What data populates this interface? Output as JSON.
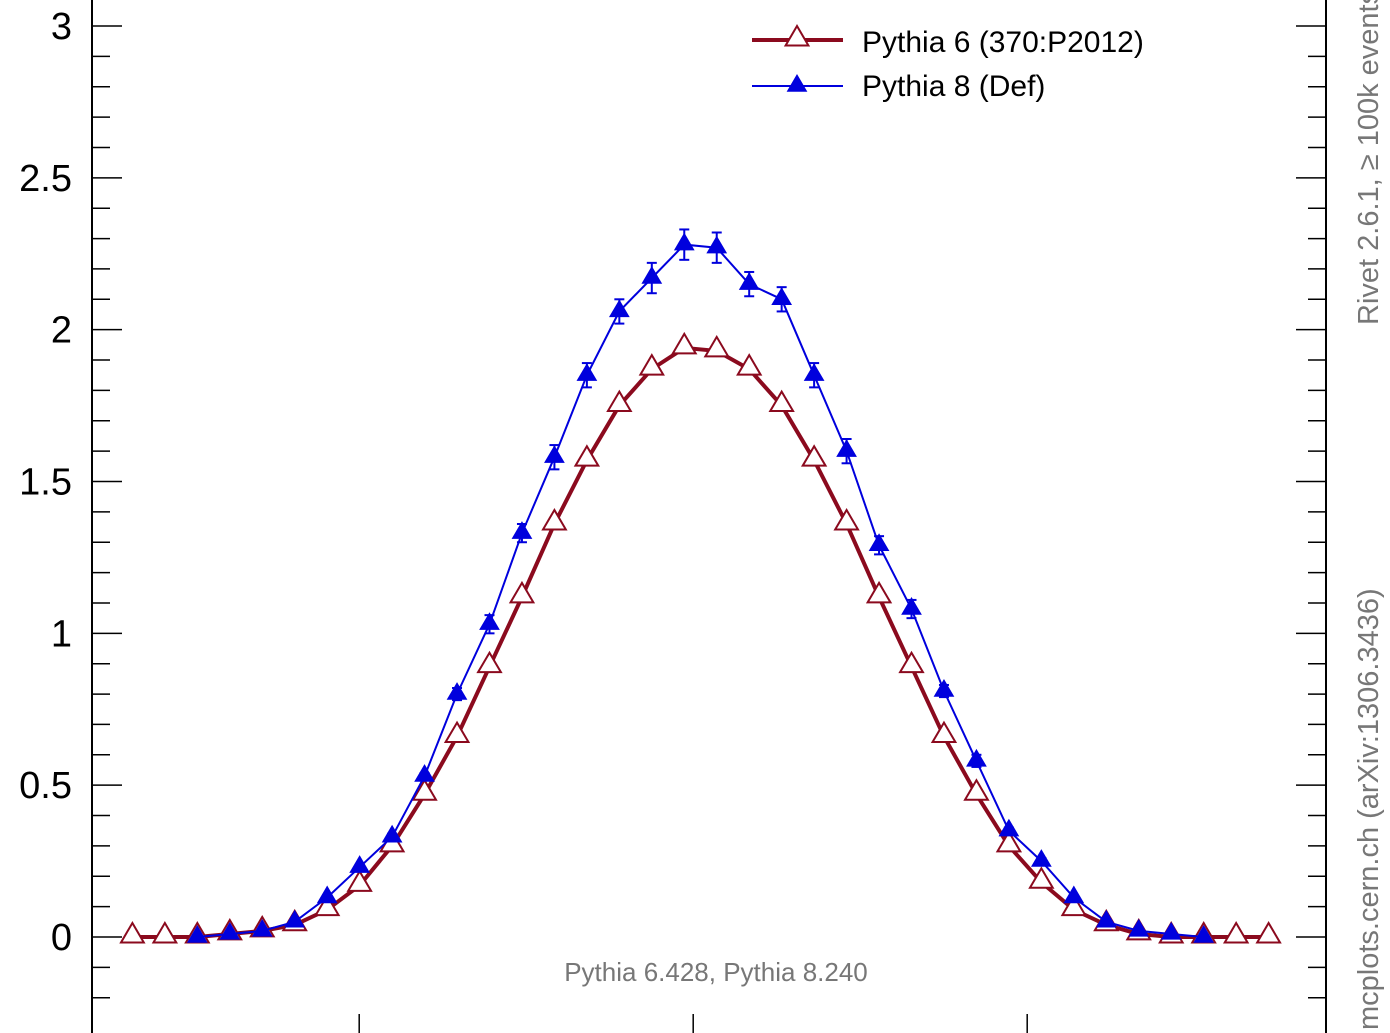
{
  "chart_data": {
    "type": "line",
    "title": "",
    "xlabel": "",
    "ylabel": "",
    "ylim": [
      -0.25,
      3.05
    ],
    "yticks": [
      0,
      0.5,
      1,
      1.5,
      2,
      2.5,
      3
    ],
    "ytick_labels": [
      "0",
      "0.5",
      "1",
      "1.5",
      "2",
      "2.5",
      "3"
    ],
    "x": [
      0,
      1,
      2,
      3,
      4,
      5,
      6,
      7,
      8,
      9,
      10,
      11,
      12,
      13,
      14,
      15,
      16,
      17,
      18,
      19,
      20,
      21,
      22,
      23,
      24,
      25,
      26,
      27,
      28,
      29,
      30,
      31,
      32,
      33,
      34,
      35
    ],
    "xlim": [
      -1.25,
      36.25
    ],
    "series": [
      {
        "name": "Pythia 6 (370:P2012)",
        "color": "#8b0a1e",
        "marker": "open-triangle",
        "values": [
          0,
          0,
          0,
          0.01,
          0.02,
          0.04,
          0.09,
          0.17,
          0.3,
          0.47,
          0.66,
          0.89,
          1.12,
          1.36,
          1.57,
          1.75,
          1.87,
          1.94,
          1.93,
          1.87,
          1.75,
          1.57,
          1.36,
          1.12,
          0.89,
          0.66,
          0.47,
          0.3,
          0.18,
          0.09,
          0.04,
          0.01,
          0,
          0,
          0,
          0
        ]
      },
      {
        "name": "Pythia 8 (Def)",
        "color": "#0000dd",
        "marker": "filled-triangle",
        "values": [
          null,
          null,
          0,
          0.01,
          0.02,
          0.05,
          0.13,
          0.23,
          0.33,
          0.53,
          0.8,
          1.03,
          1.33,
          1.58,
          1.85,
          2.06,
          2.17,
          2.28,
          2.27,
          2.15,
          2.1,
          1.85,
          1.6,
          1.29,
          1.08,
          0.81,
          0.58,
          0.35,
          0.25,
          0.13,
          0.05,
          0.02,
          0.01,
          0,
          null,
          null
        ],
        "errors": [
          0,
          0,
          0,
          0,
          0,
          0,
          0,
          0,
          0.01,
          0.01,
          0.02,
          0.03,
          0.03,
          0.04,
          0.04,
          0.04,
          0.05,
          0.05,
          0.05,
          0.04,
          0.04,
          0.04,
          0.04,
          0.03,
          0.03,
          0.02,
          0.02,
          0.01,
          0.01,
          0,
          0,
          0,
          0,
          0,
          0,
          0
        ]
      }
    ],
    "legend_position": "top-right",
    "annotation": "Pythia 6.428, Pythia 8.240",
    "side_label_top": "Rivet 2.6.1, ≥ 100k events",
    "side_label_bottom": "mcplots.cern.ch (arXiv:1306.3436)"
  }
}
